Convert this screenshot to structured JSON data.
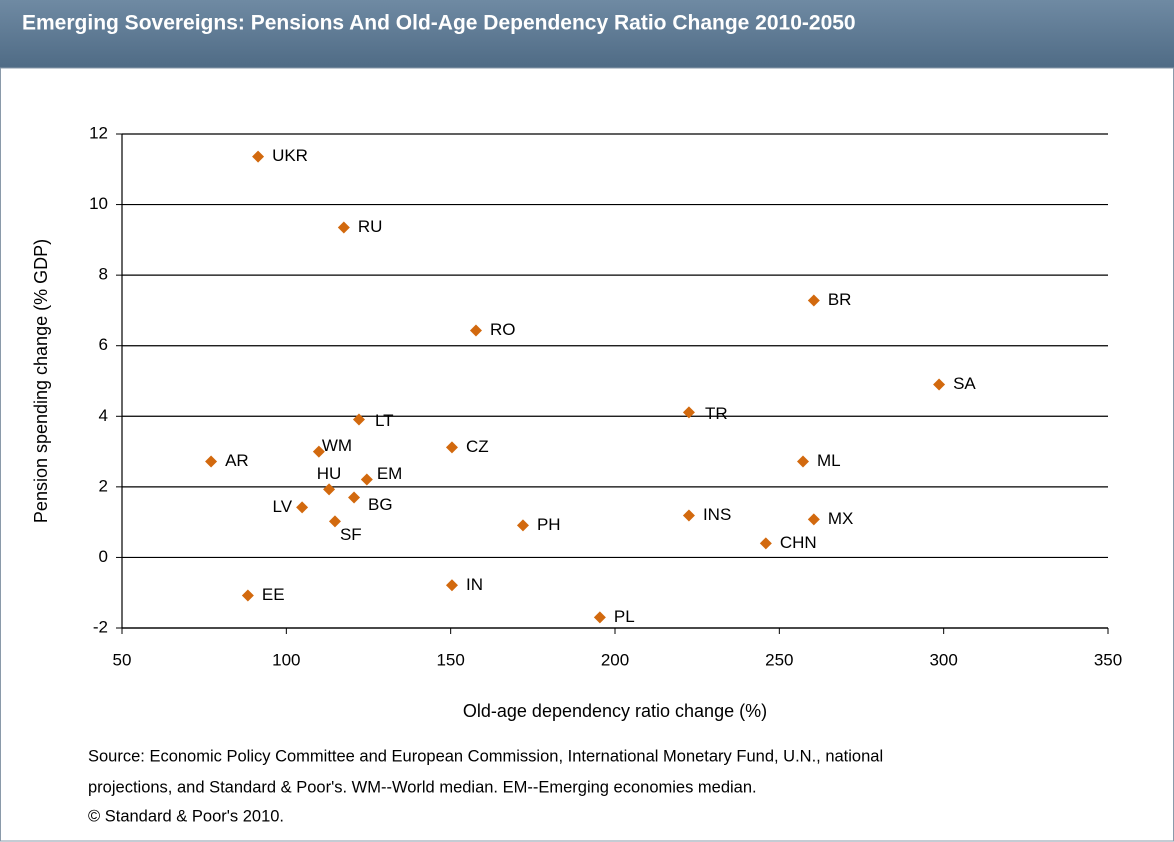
{
  "chart_data": {
    "type": "scatter",
    "title": "Emerging Sovereigns: Pensions And Old-Age Dependency Ratio Change 2010-2050",
    "x_label": "Old-age dependency ratio change (%)",
    "y_label": "Pension spending change (% GDP)",
    "labels": [
      "UKR",
      "RU",
      "BR",
      "RO",
      "SA",
      "LT",
      "TR",
      "CZ",
      "WM",
      "AR",
      "ML",
      "EM",
      "HU",
      "BG",
      "LV",
      "SF",
      "PH",
      "INS",
      "MX",
      "CHN",
      "IN",
      "EE",
      "PL"
    ],
    "x": [
      91.4,
      117.5,
      260.5,
      157.7,
      298.6,
      122.1,
      222.5,
      150.4,
      109.9,
      77.1,
      257.2,
      124.5,
      113,
      120.6,
      104.8,
      114.8,
      172,
      222.5,
      260.5,
      245.9,
      150.4,
      88.3,
      195.4
    ],
    "values": [
      11.36,
      9.35,
      7.28,
      6.43,
      4.9,
      3.91,
      4.11,
      3.12,
      3.0,
      2.72,
      2.72,
      2.21,
      1.93,
      1.7,
      1.42,
      1.02,
      0.91,
      1.19,
      1.08,
      0.4,
      -0.79,
      -1.08,
      -1.7
    ],
    "color": "#d2690e",
    "xlim": [
      50,
      350
    ],
    "xticks": [
      50,
      100,
      150,
      200,
      250,
      300,
      350
    ],
    "ylim": [
      -2,
      12
    ],
    "yticks": [
      -2,
      0,
      2,
      4,
      6,
      8,
      10,
      12
    ],
    "grid": true,
    "source": [
      "Source: Economic Policy Committee and European Commission, International Monetary Fund, U.N., national",
      "projections, and Standard & Poor's. WM--World median. EM--Emerging economies median.",
      "© Standard & Poor's 2010."
    ]
  }
}
